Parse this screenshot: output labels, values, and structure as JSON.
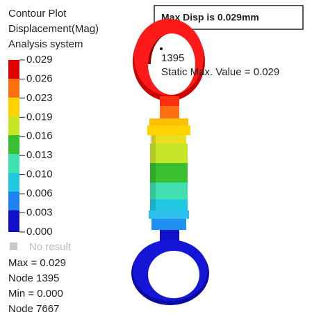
{
  "legend": {
    "title_lines": [
      "Contour Plot",
      "Displacement(Mag)",
      "Analysis system"
    ],
    "labels": [
      "0.029",
      "0.026",
      "0.023",
      "0.019",
      "0.016",
      "0.013",
      "0.010",
      "0.006",
      "0.003",
      "0.000"
    ],
    "no_result": "No result"
  },
  "summary": [
    "Max = 0.029",
    "Node 1395",
    "Min = 0.000",
    "Node 7667"
  ],
  "callout_box": "Max Disp is 0.029mm",
  "annotation": {
    "node": "1395",
    "text": "Static Max. Value =  0.029"
  }
}
